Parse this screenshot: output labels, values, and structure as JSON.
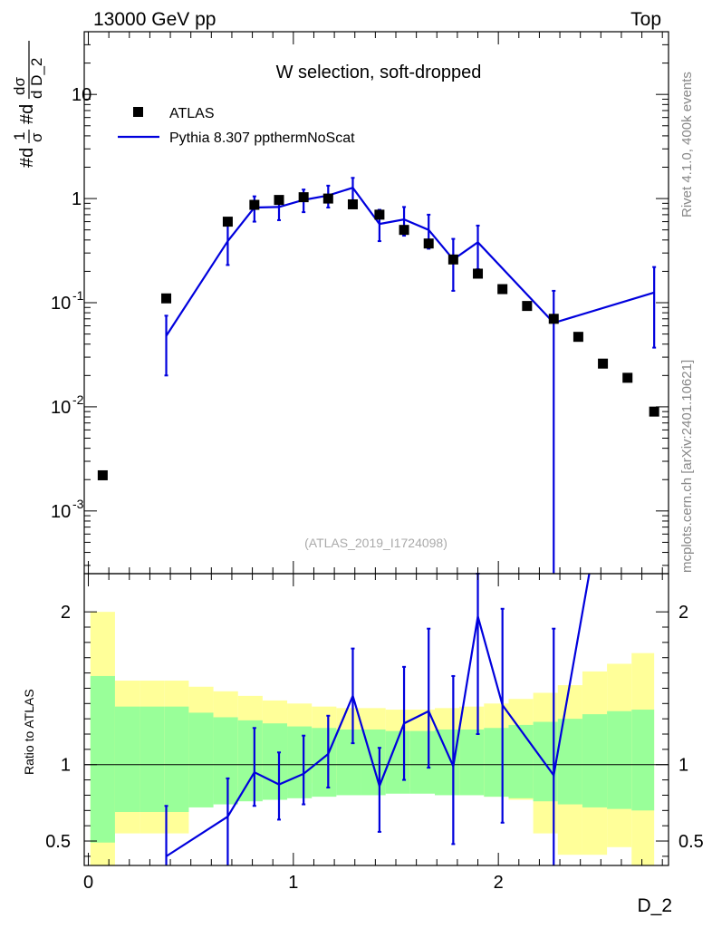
{
  "header": {
    "energy_label": "13000 GeV pp",
    "process_label": "Top"
  },
  "side_labels": {
    "rivet": "Rivet 4.1.0,  400k events",
    "mcplots": "mcplots.cern.ch [arXiv:2401.10621]"
  },
  "chart_data": [
    {
      "type": "scatter",
      "panel": "main",
      "title": "W selection, soft-dropped",
      "analysis_label": "(ATLAS_2019_I1724098)",
      "ylabel": "#d1/σ #d dσ/d D_2",
      "ylabel_parts": {
        "a": "#d",
        "b": "1",
        "c": "σ",
        "d": "#d",
        "e": "dσ",
        "f": "d D_2"
      },
      "yscale": "log",
      "ylim": [
        0.00025,
        40
      ],
      "xlim": [
        -0.02,
        2.83
      ],
      "y_ticks": [
        {
          "value": 0.001,
          "base": "10",
          "exp": "-3"
        },
        {
          "value": 0.01,
          "base": "10",
          "exp": "-2"
        },
        {
          "value": 0.1,
          "base": "10",
          "exp": "-1"
        },
        {
          "value": 1,
          "base": "1",
          "exp": ""
        },
        {
          "value": 10,
          "base": "10",
          "exp": ""
        }
      ],
      "legend": [
        {
          "name": "ATLAS",
          "marker": "square",
          "color": "#000000"
        },
        {
          "name": "Pythia 8.307 ppthermNoScat",
          "marker": "line",
          "color": "#0000dd"
        }
      ],
      "series": [
        {
          "name": "ATLAS",
          "x": [
            0.07,
            0.38,
            0.68,
            0.81,
            0.93,
            1.05,
            1.17,
            1.29,
            1.42,
            1.54,
            1.66,
            1.78,
            1.9,
            2.02,
            2.14,
            2.27,
            2.39,
            2.51,
            2.63,
            2.76
          ],
          "y": [
            0.0022,
            0.11,
            0.6,
            0.87,
            0.97,
            1.03,
            1.0,
            0.88,
            0.7,
            0.5,
            0.37,
            0.26,
            0.19,
            0.135,
            0.093,
            0.07,
            0.047,
            0.026,
            0.019,
            0.009
          ]
        },
        {
          "name": "Pythia 8.307 ppthermNoScat",
          "x": [
            0.38,
            0.68,
            0.81,
            0.93,
            1.05,
            1.17,
            1.29,
            1.42,
            1.54,
            1.66,
            1.78,
            1.9,
            2.27,
            2.76
          ],
          "y": [
            0.048,
            0.39,
            0.82,
            0.83,
            0.97,
            1.07,
            1.27,
            0.57,
            0.63,
            0.5,
            0.26,
            0.38,
            0.064,
            0.125
          ],
          "err_low": [
            0.02,
            0.23,
            0.6,
            0.62,
            0.74,
            0.82,
            0.95,
            0.39,
            0.44,
            0.33,
            0.13,
            0.21,
            0.0001,
            0.037
          ],
          "err_high": [
            0.075,
            0.62,
            1.05,
            1.05,
            1.22,
            1.33,
            1.58,
            0.78,
            0.83,
            0.7,
            0.41,
            0.55,
            0.13,
            0.22
          ]
        }
      ]
    },
    {
      "type": "line",
      "panel": "ratio",
      "ylabel": "Ratio to ATLAS",
      "xlabel": "D_2",
      "ylim": [
        0.34,
        2.25
      ],
      "xlim": [
        -0.02,
        2.83
      ],
      "y_ticks": [
        0.5,
        1,
        2
      ],
      "x_ticks": [
        0,
        1,
        2
      ],
      "reference_line": 1.0,
      "bands": {
        "bin_edges": [
          0.01,
          0.13,
          0.25,
          0.37,
          0.49,
          0.61,
          0.73,
          0.85,
          0.97,
          1.09,
          1.21,
          1.33,
          1.45,
          1.57,
          1.69,
          1.81,
          1.93,
          2.05,
          2.17,
          2.29,
          2.41,
          2.53,
          2.65,
          2.76
        ],
        "green_low": [
          0.49,
          0.69,
          0.69,
          0.69,
          0.72,
          0.74,
          0.76,
          0.77,
          0.78,
          0.79,
          0.8,
          0.8,
          0.81,
          0.81,
          0.8,
          0.8,
          0.79,
          0.78,
          0.76,
          0.74,
          0.72,
          0.71,
          0.7
        ],
        "green_high": [
          1.58,
          1.38,
          1.38,
          1.38,
          1.34,
          1.31,
          1.29,
          1.27,
          1.25,
          1.24,
          1.23,
          1.23,
          1.22,
          1.22,
          1.23,
          1.23,
          1.24,
          1.26,
          1.28,
          1.3,
          1.33,
          1.35,
          1.36
        ],
        "yellow_low": [
          0.34,
          0.55,
          0.55,
          0.55,
          0.81,
          0.84,
          0.86,
          0.87,
          0.88,
          0.88,
          0.88,
          0.88,
          0.87,
          0.85,
          0.83,
          0.8,
          0.79,
          0.77,
          0.55,
          0.41,
          0.41,
          0.46,
          0.34
        ],
        "yellow_high": [
          2.0,
          1.55,
          1.55,
          1.55,
          1.51,
          1.48,
          1.45,
          1.42,
          1.4,
          1.38,
          1.37,
          1.37,
          1.36,
          1.36,
          1.37,
          1.38,
          1.4,
          1.43,
          1.47,
          1.52,
          1.61,
          1.66,
          1.73
        ]
      },
      "series": [
        {
          "name": "Pythia 8.307 ppthermNoScat / ATLAS",
          "x": [
            0.38,
            0.68,
            0.81,
            0.93,
            1.05,
            1.17,
            1.29,
            1.42,
            1.54,
            1.66,
            1.78,
            1.9,
            2.02,
            2.27,
            2.45
          ],
          "y": [
            0.4,
            0.66,
            0.95,
            0.87,
            0.94,
            1.07,
            1.45,
            0.86,
            1.27,
            1.35,
            0.99,
            1.97,
            1.39,
            0.93,
            2.3
          ],
          "err_low": [
            0.3,
            0.3,
            0.73,
            0.64,
            0.74,
            0.85,
            1.14,
            0.56,
            0.9,
            0.98,
            0.48,
            1.2,
            0.62,
            0.3,
            null
          ],
          "err_high": [
            0.73,
            0.91,
            1.24,
            1.08,
            1.19,
            1.32,
            1.76,
            1.11,
            1.64,
            1.89,
            1.58,
            2.4,
            2.02,
            1.89,
            null
          ]
        }
      ]
    }
  ]
}
